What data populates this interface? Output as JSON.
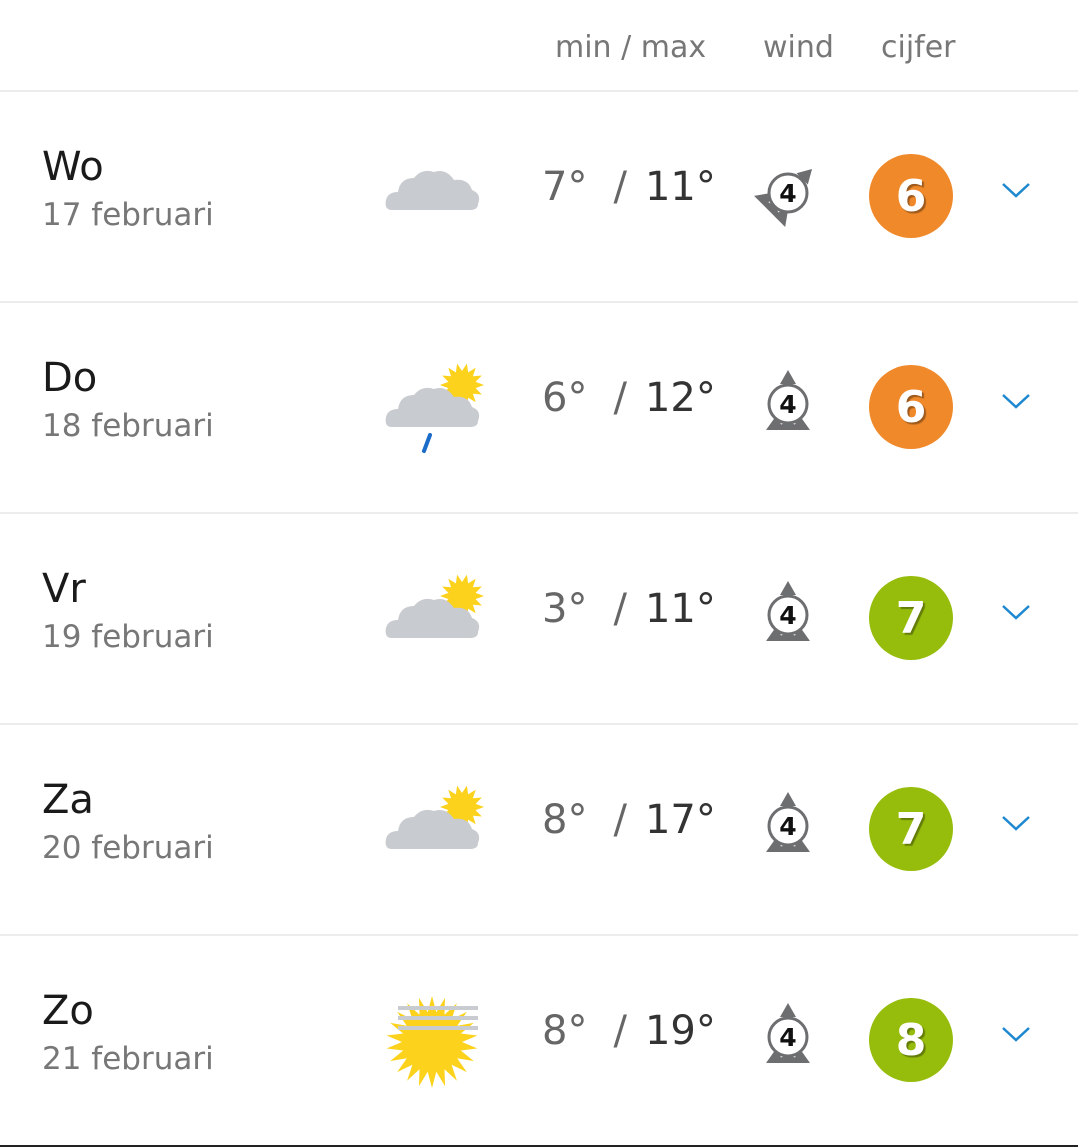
{
  "header": {
    "minmax": "min / max",
    "wind": "wind",
    "grade": "cijfer"
  },
  "colors": {
    "grade_orange": "#f0892a",
    "grade_green": "#97bd0c",
    "chevron": "#1e88d0"
  },
  "days": [
    {
      "day": "Wo",
      "date": "17 februari",
      "weather_icon": "cloudy-icon",
      "min": "7°",
      "max": "11°",
      "wind_force": "4",
      "wind_rotation_deg": 45,
      "grade": "6",
      "grade_color": "#f0892a"
    },
    {
      "day": "Do",
      "date": "18 februari",
      "weather_icon": "cloud-sun-rain-icon",
      "min": "6°",
      "max": "12°",
      "wind_force": "4",
      "wind_rotation_deg": 0,
      "grade": "6",
      "grade_color": "#f0892a"
    },
    {
      "day": "Vr",
      "date": "19 februari",
      "weather_icon": "cloud-sun-icon",
      "min": "3°",
      "max": "11°",
      "wind_force": "4",
      "wind_rotation_deg": 0,
      "grade": "7",
      "grade_color": "#97bd0c"
    },
    {
      "day": "Za",
      "date": "20 februari",
      "weather_icon": "cloud-sun-icon",
      "min": "8°",
      "max": "17°",
      "wind_force": "4",
      "wind_rotation_deg": 0,
      "grade": "7",
      "grade_color": "#97bd0c"
    },
    {
      "day": "Zo",
      "date": "21 februari",
      "weather_icon": "sun-haze-icon",
      "min": "8°",
      "max": "19°",
      "wind_force": "4",
      "wind_rotation_deg": 0,
      "grade": "8",
      "grade_color": "#97bd0c"
    }
  ]
}
